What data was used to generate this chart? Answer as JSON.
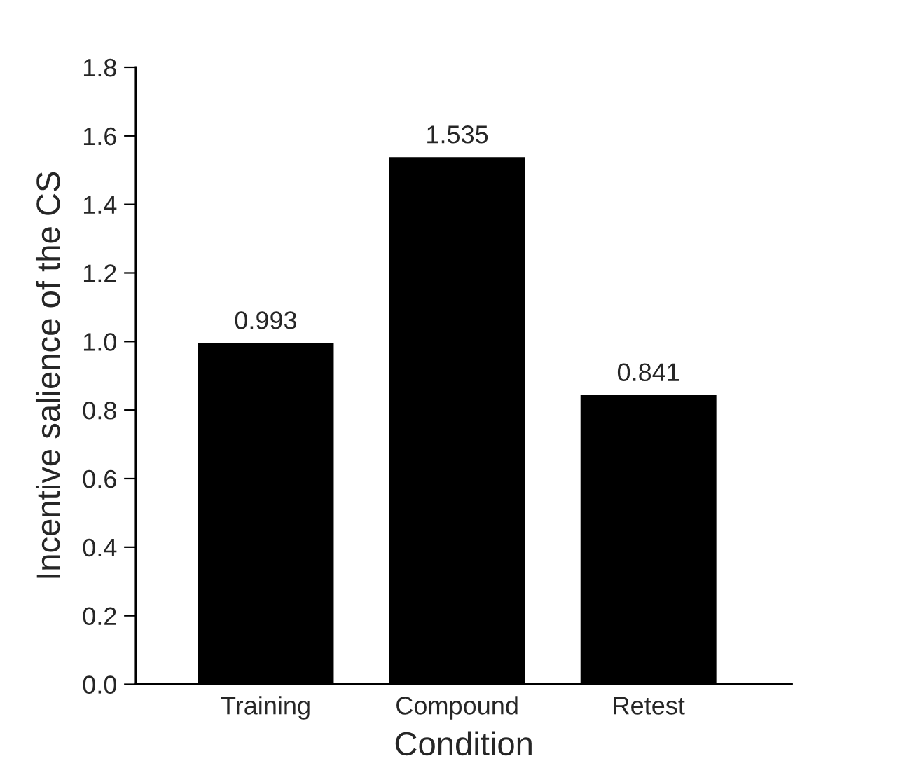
{
  "chart_data": {
    "type": "bar",
    "xlabel": "Condition",
    "ylabel": "Incentive salience of the CS",
    "categories": [
      "Training",
      "Compound",
      "Retest"
    ],
    "values": [
      0.993,
      1.535,
      0.841
    ],
    "color": "#000000",
    "data_labels": true,
    "ylim": [
      0,
      1.8
    ],
    "yticks": [
      {
        "value": 0,
        "label": "0.0"
      },
      {
        "value": 0.2,
        "label": "0.2"
      },
      {
        "value": 0.4,
        "label": "0.4"
      },
      {
        "value": 0.6,
        "label": "0.6"
      },
      {
        "value": 0.8,
        "label": "0.8"
      },
      {
        "value": 1.0,
        "label": "1.0"
      },
      {
        "value": 1.2,
        "label": "1.2"
      },
      {
        "value": 1.4,
        "label": "1.4"
      },
      {
        "value": 1.6,
        "label": "1.6"
      },
      {
        "value": 1.8,
        "label": "1.8"
      }
    ],
    "grid": false,
    "legend": false
  }
}
